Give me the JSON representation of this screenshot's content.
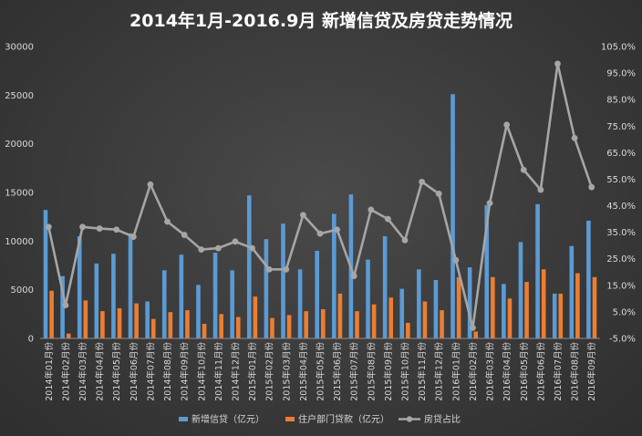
{
  "chart_data": {
    "type": "bar",
    "title": "2014年1月-2016.9月 新增信贷及房贷走势情况",
    "categories": [
      "2014年01月份",
      "2014年02月份",
      "2014年03月份",
      "2014年04月份",
      "2014年05月份",
      "2014年06月份",
      "2014年07月份",
      "2014年08月份",
      "2014年09月份",
      "2014年10月份",
      "2014年11月份",
      "2014年12月份",
      "2015年01月份",
      "2015年02月份",
      "2015年03月份",
      "2015年04月份",
      "2015年05月份",
      "2015年06月份",
      "2015年07月份",
      "2015年08月份",
      "2015年09月份",
      "2015年10月份",
      "2015年11月份",
      "2015年12月份",
      "2016年01月份",
      "2016年02月份",
      "2016年03月份",
      "2016年04月份",
      "2016年05月份",
      "2016年06月份",
      "2016年07月份",
      "2016年08月份",
      "2016年09月份"
    ],
    "series": [
      {
        "name": "新增信贷（亿元）",
        "type": "bar",
        "axis": "left",
        "color": "#5b9bd5",
        "values": [
          13200,
          6400,
          10500,
          7700,
          8700,
          10800,
          3800,
          7000,
          8600,
          5500,
          8800,
          7000,
          14700,
          10200,
          11800,
          7100,
          9000,
          12800,
          14800,
          8100,
          10500,
          5100,
          7100,
          6000,
          25100,
          7300,
          13700,
          5600,
          9900,
          13800,
          4600,
          9500,
          12100
        ]
      },
      {
        "name": "住户部门贷款（亿元）",
        "type": "bar",
        "axis": "left",
        "color": "#ed7d31",
        "values": [
          4900,
          500,
          3900,
          2800,
          3100,
          3600,
          2000,
          2700,
          2900,
          1500,
          2500,
          2200,
          4300,
          2100,
          2400,
          2800,
          3000,
          4600,
          2800,
          3500,
          4200,
          1600,
          3800,
          2900,
          6300,
          700,
          6300,
          4100,
          5800,
          7100,
          4600,
          6700,
          6300
        ]
      },
      {
        "name": "房贷占比",
        "type": "line",
        "axis": "right",
        "color": "#a6a6a6",
        "values": [
          37.0,
          7.5,
          37.0,
          36.4,
          36.0,
          33.3,
          53.0,
          39.0,
          34.0,
          28.5,
          29.0,
          31.5,
          29.0,
          21.0,
          21.0,
          41.5,
          34.5,
          36.0,
          18.5,
          43.5,
          40.0,
          32.0,
          54.0,
          49.5,
          24.5,
          -1.0,
          46.0,
          75.5,
          58.5,
          51.0,
          98.5,
          70.5,
          52.0
        ]
      }
    ],
    "y_left": {
      "min": 0,
      "max": 30000,
      "ticks": [
        0,
        5000,
        10000,
        15000,
        20000,
        25000,
        30000
      ]
    },
    "y_right": {
      "min": -5.0,
      "max": 105.0,
      "ticks": [
        "-5.0%",
        "5.0%",
        "15.0%",
        "25.0%",
        "35.0%",
        "45.0%",
        "55.0%",
        "65.0%",
        "75.0%",
        "85.0%",
        "95.0%",
        "105.0%"
      ]
    },
    "grid": false,
    "legend_position": "bottom"
  }
}
